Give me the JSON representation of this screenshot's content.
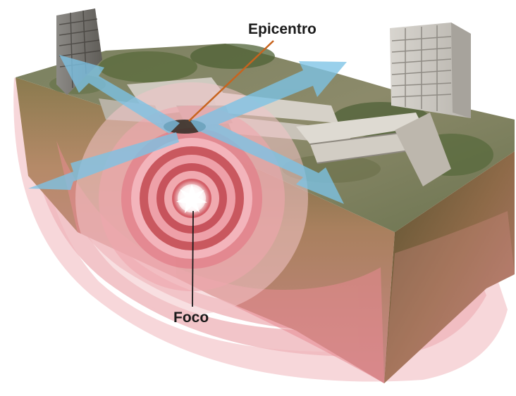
{
  "labels": {
    "epicenter": "Epicentro",
    "focus": "Foco"
  },
  "colors": {
    "wave_ring": "#e7808a",
    "wave_ring_light": "#f3c4c8",
    "seismic_arrow": "#7cc3e6",
    "epicenter_pointer": "#c8641e",
    "ground_top": "#6f7a55",
    "soil_side": "#b9856a"
  },
  "icons": [
    "building-icon",
    "collapsed-building-icon",
    "seismic-wave-arrow-icon"
  ]
}
